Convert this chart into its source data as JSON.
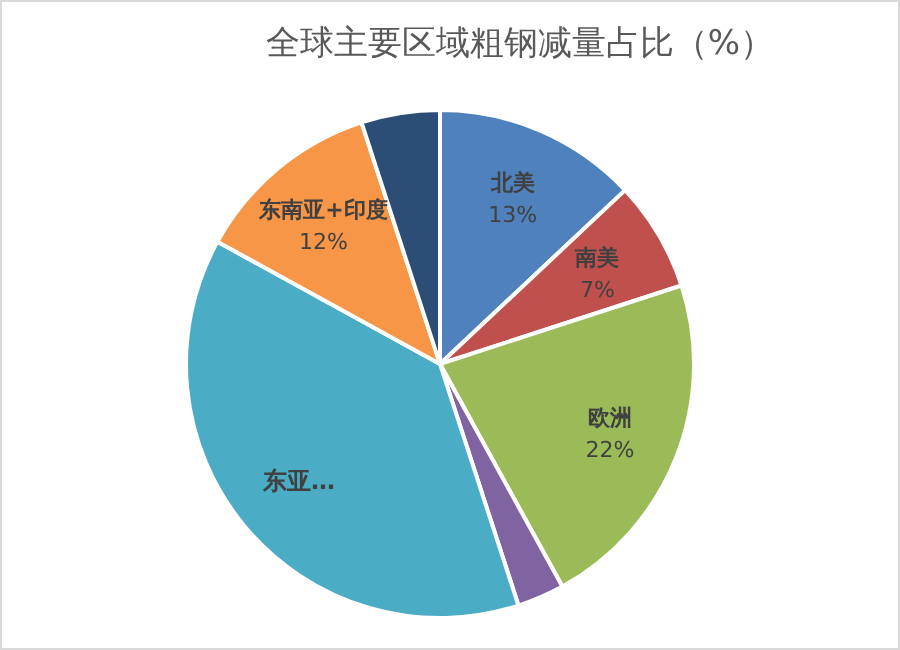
{
  "chart_data": {
    "type": "pie",
    "title": "全球主要区域粗钢减量占比（%）",
    "categories": [
      "北美",
      "南美",
      "欧洲",
      null,
      "东亚…",
      "东南亚+印度",
      null
    ],
    "values": [
      13,
      7,
      22,
      3,
      38,
      12,
      5
    ],
    "colors": [
      "#4f81bd",
      "#c0504d",
      "#9bbb59",
      "#8064a2",
      "#4bacc6",
      "#f79646",
      "#2c4d75"
    ],
    "value_labels": [
      "13%",
      "7%",
      "22%",
      null,
      null,
      "12%",
      null
    ]
  }
}
